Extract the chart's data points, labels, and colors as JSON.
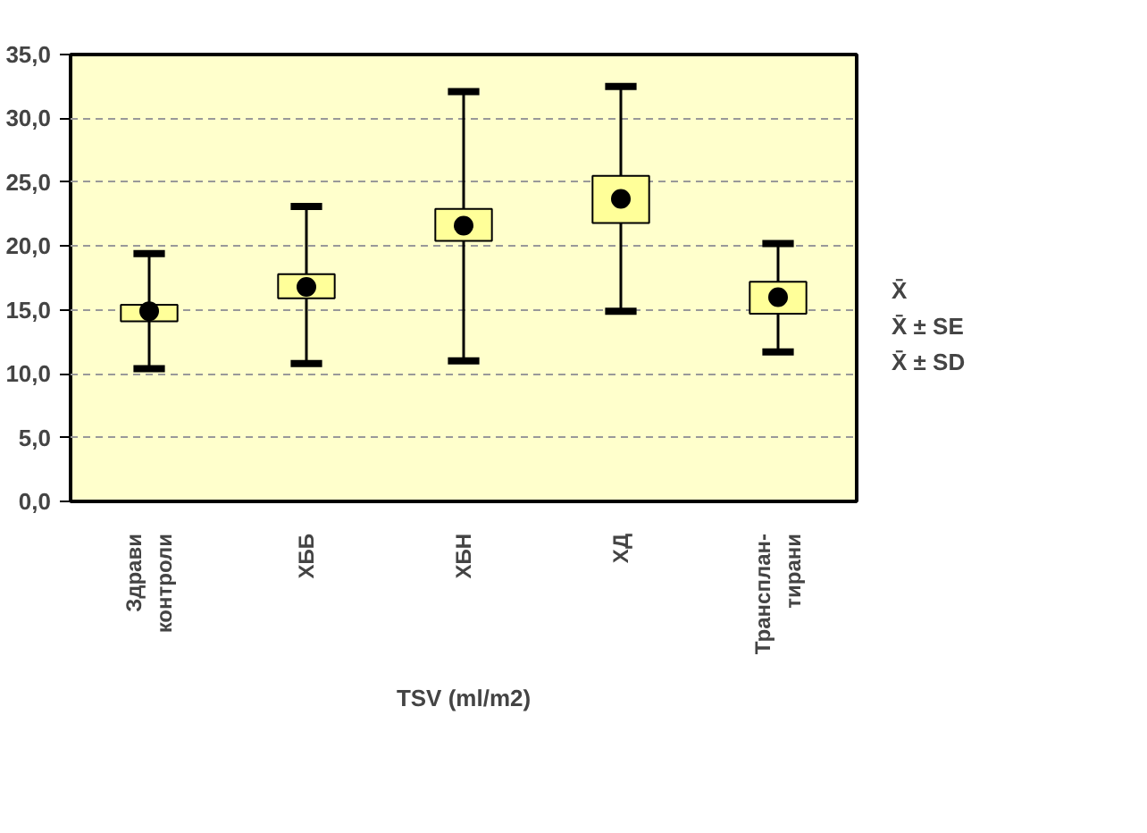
{
  "chart_data": {
    "type": "box",
    "xlabel": "TSV (ml/m2)",
    "categories": [
      "Здрави\nконтроли",
      "ХББ",
      "ХБН",
      "ХД",
      "Трансплан-\nтирани"
    ],
    "boxes": [
      {
        "low": 10.4,
        "q1": 14.1,
        "mean": 14.9,
        "q3": 15.4,
        "high": 19.4
      },
      {
        "low": 10.8,
        "q1": 15.9,
        "mean": 16.8,
        "q3": 17.8,
        "high": 23.1
      },
      {
        "low": 11.0,
        "q1": 20.4,
        "mean": 21.6,
        "q3": 22.9,
        "high": 32.1
      },
      {
        "low": 14.9,
        "q1": 21.8,
        "mean": 23.7,
        "q3": 25.5,
        "high": 32.5
      },
      {
        "low": 11.7,
        "q1": 14.7,
        "mean": 16.0,
        "q3": 17.2,
        "high": 20.2
      }
    ],
    "color": "#ffff99",
    "ylim": [
      0,
      35
    ],
    "yticks": [
      {
        "value": 0,
        "label": "0,0"
      },
      {
        "value": 5,
        "label": "5,0"
      },
      {
        "value": 10,
        "label": "10,0"
      },
      {
        "value": 15,
        "label": "15,0"
      },
      {
        "value": 20,
        "label": "20,0"
      },
      {
        "value": 25,
        "label": "25,0"
      },
      {
        "value": 30,
        "label": "30,0"
      },
      {
        "value": 35,
        "label": "35,0"
      }
    ],
    "grid": "y",
    "marker": "circle",
    "annotations": [
      "X̄",
      "X̄ ± SE",
      "X̄ ± SD"
    ]
  }
}
